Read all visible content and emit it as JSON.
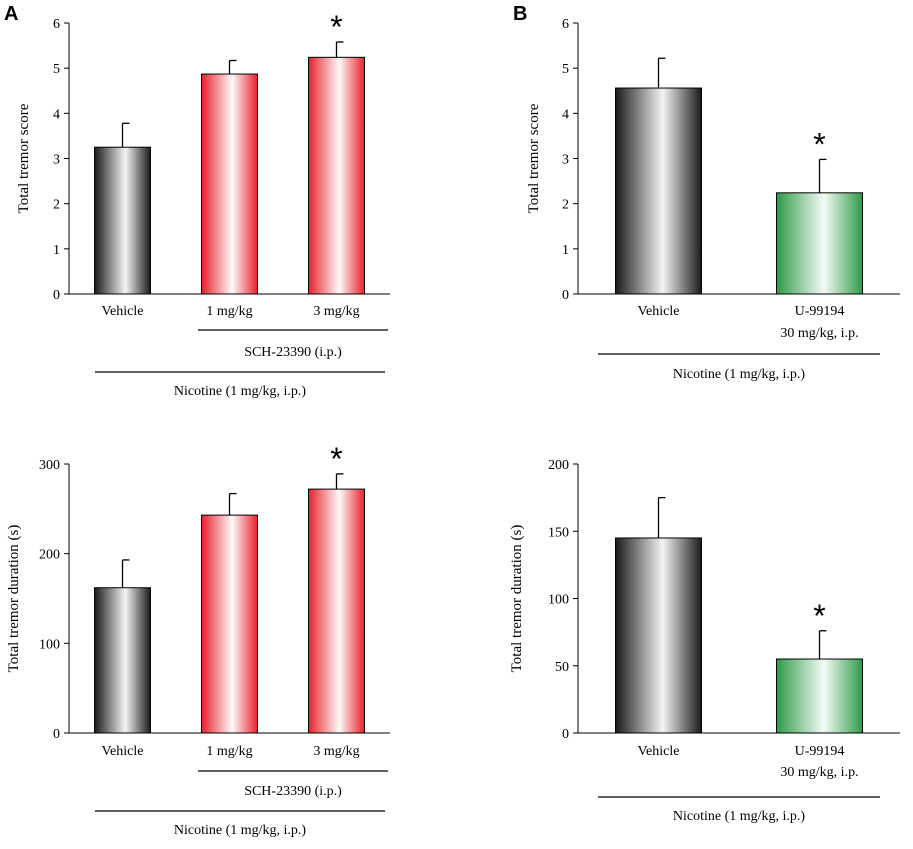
{
  "panels": {
    "A": "A",
    "B": "B"
  },
  "colors": {
    "vehicle_dark": "#1a1a1a",
    "vehicle_light": "#f4f4f4",
    "red_accent": "#e8202a",
    "red_light": "#fdfafa",
    "green_accent": "#2e9a48",
    "green_light": "#f4fbf5"
  },
  "chart_data": [
    {
      "id": "A-score",
      "panel": "A",
      "type": "bar",
      "ylabel": "Total tremor score",
      "ylim": [
        0,
        6
      ],
      "yticks": [
        0,
        1,
        2,
        3,
        4,
        5,
        6
      ],
      "categories": [
        "Vehicle",
        "1 mg/kg",
        "3 mg/kg"
      ],
      "values": [
        3.25,
        4.87,
        5.24
      ],
      "errors": [
        0.53,
        0.3,
        0.34
      ],
      "fills": [
        "gray",
        "red",
        "red"
      ],
      "significant": [
        "",
        "",
        "*"
      ],
      "group_label": "SCH-23390 (i.p.)",
      "group_span": [
        1,
        2
      ],
      "treatment_label": "Nicotine (1 mg/kg,  i.p.)"
    },
    {
      "id": "B-score",
      "panel": "B",
      "type": "bar",
      "ylabel": "Total tremor score",
      "ylim": [
        0,
        6
      ],
      "yticks": [
        0,
        1,
        2,
        3,
        4,
        5,
        6
      ],
      "categories": [
        "Vehicle",
        "U-99194"
      ],
      "sublabels": [
        "",
        "30 mg/kg, i.p."
      ],
      "values": [
        4.56,
        2.24
      ],
      "errors": [
        0.66,
        0.74
      ],
      "fills": [
        "gray",
        "green"
      ],
      "significant": [
        "",
        "*"
      ],
      "treatment_label": "Nicotine (1 mg/kg,  i.p.)"
    },
    {
      "id": "A-duration",
      "panel": "A",
      "type": "bar",
      "ylabel": "Total tremor duration (s)",
      "ylim": [
        0,
        300
      ],
      "yticks": [
        0,
        100,
        200,
        300
      ],
      "categories": [
        "Vehicle",
        "1 mg/kg",
        "3 mg/kg"
      ],
      "values": [
        162,
        243,
        272
      ],
      "errors": [
        31,
        24,
        17
      ],
      "fills": [
        "gray",
        "red",
        "red"
      ],
      "significant": [
        "",
        "",
        "*"
      ],
      "group_label": "SCH-23390 (i.p.)",
      "group_span": [
        1,
        2
      ],
      "treatment_label": "Nicotine (1 mg/kg,  i.p.)"
    },
    {
      "id": "B-duration",
      "panel": "B",
      "type": "bar",
      "ylabel": "Total tremor duration (s)",
      "ylim": [
        0,
        200
      ],
      "yticks": [
        0,
        50,
        100,
        150,
        200
      ],
      "categories": [
        "Vehicle",
        "U-99194"
      ],
      "sublabels": [
        "",
        "30 mg/kg, i.p."
      ],
      "values": [
        145,
        55
      ],
      "errors": [
        30,
        21
      ],
      "fills": [
        "gray",
        "green"
      ],
      "significant": [
        "",
        "*"
      ],
      "treatment_label": "Nicotine (1 mg/kg,  i.p.)"
    }
  ]
}
